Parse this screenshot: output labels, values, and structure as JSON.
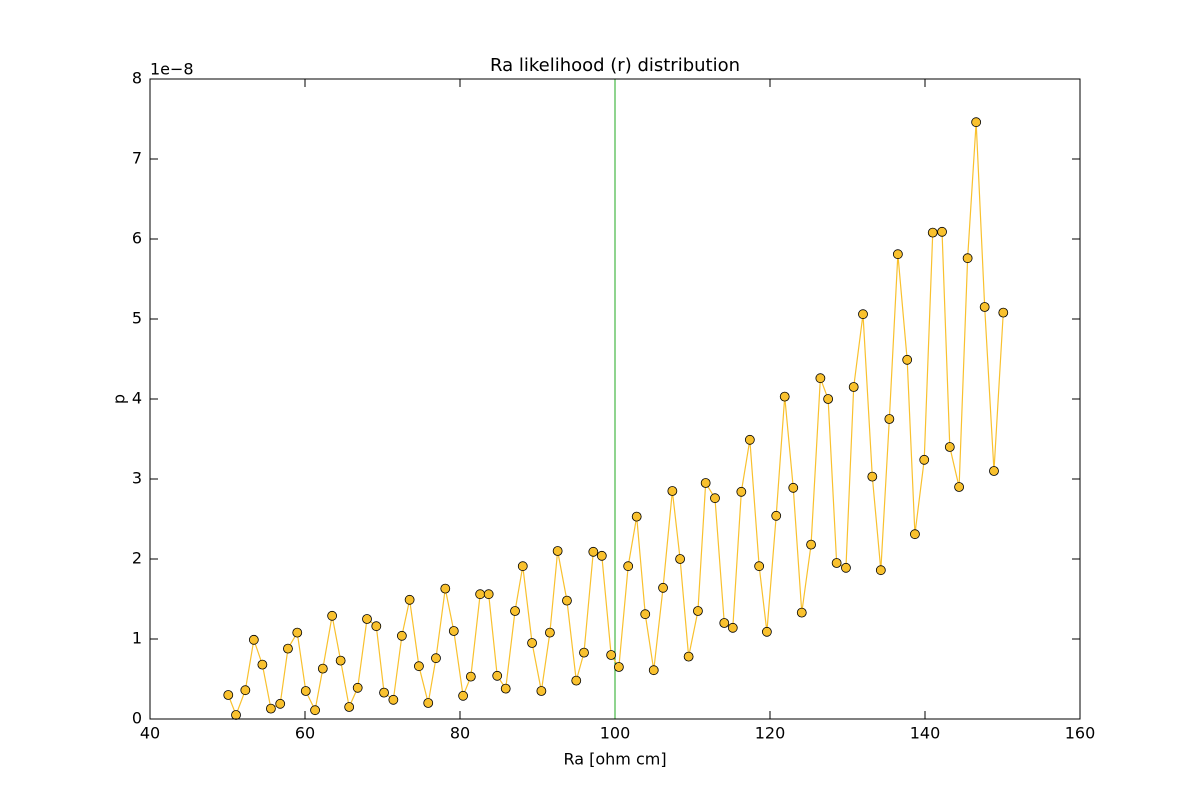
{
  "chart_data": {
    "type": "line",
    "title": "Ra likelihood (r) distribution",
    "xlabel": "Ra [ohm cm]",
    "ylabel": "p",
    "y_offset_label": "1e−8",
    "xlim": [
      40,
      160
    ],
    "xticks": [
      40,
      60,
      80,
      100,
      120,
      140,
      160
    ],
    "ylim": [
      0,
      8
    ],
    "yticks": [
      0,
      1,
      2,
      3,
      4,
      5,
      6,
      7,
      8
    ],
    "vline": {
      "x": 100,
      "color": "#1fa81f"
    },
    "series": [
      {
        "color": "#f9c12e",
        "marker_edge": "#000000",
        "x": [
          50.1,
          51.1,
          52.3,
          53.4,
          54.5,
          55.6,
          56.8,
          57.8,
          59.0,
          60.1,
          61.3,
          62.3,
          63.5,
          64.6,
          65.7,
          66.8,
          68.0,
          69.2,
          70.2,
          71.4,
          72.5,
          73.5,
          74.7,
          75.9,
          76.9,
          78.1,
          79.2,
          80.4,
          81.4,
          82.6,
          83.7,
          84.8,
          85.9,
          87.1,
          88.1,
          89.3,
          90.5,
          91.6,
          92.6,
          93.8,
          95.0,
          96.0,
          97.2,
          98.3,
          99.5,
          100.5,
          101.7,
          102.8,
          103.9,
          105.0,
          106.2,
          107.4,
          108.4,
          109.5,
          110.7,
          111.7,
          112.9,
          114.1,
          115.2,
          116.3,
          117.4,
          118.6,
          119.6,
          120.8,
          121.9,
          123.0,
          124.1,
          125.3,
          126.5,
          127.5,
          128.6,
          129.8,
          130.8,
          132.0,
          133.2,
          134.3,
          135.4,
          136.5,
          137.7,
          138.7,
          139.9,
          141.0,
          142.2,
          143.2,
          144.4,
          145.5,
          146.6,
          147.7,
          148.9,
          150.1
        ],
        "values": [
          0.3,
          0.05,
          0.36,
          0.99,
          0.68,
          0.13,
          0.19,
          0.88,
          1.08,
          0.35,
          0.11,
          0.63,
          1.29,
          0.73,
          0.15,
          0.39,
          1.25,
          1.16,
          0.33,
          0.24,
          1.04,
          1.49,
          0.66,
          0.2,
          0.76,
          1.63,
          1.1,
          0.29,
          0.53,
          1.56,
          1.56,
          0.54,
          0.38,
          1.35,
          1.91,
          0.95,
          0.35,
          1.08,
          2.1,
          1.48,
          0.48,
          0.83,
          2.09,
          2.04,
          0.8,
          0.65,
          1.91,
          2.53,
          1.31,
          0.61,
          1.64,
          2.85,
          2.0,
          0.78,
          1.35,
          2.95,
          2.76,
          1.2,
          1.14,
          2.84,
          3.49,
          1.91,
          1.09,
          2.54,
          4.03,
          2.89,
          1.33,
          2.18,
          4.26,
          4.0,
          1.95,
          1.89,
          4.15,
          5.06,
          3.03,
          1.86,
          3.75,
          5.81,
          4.49,
          2.31,
          3.24,
          6.08,
          6.09,
          3.4,
          2.9,
          5.76,
          7.46,
          5.15,
          3.1,
          5.08
        ]
      }
    ]
  }
}
